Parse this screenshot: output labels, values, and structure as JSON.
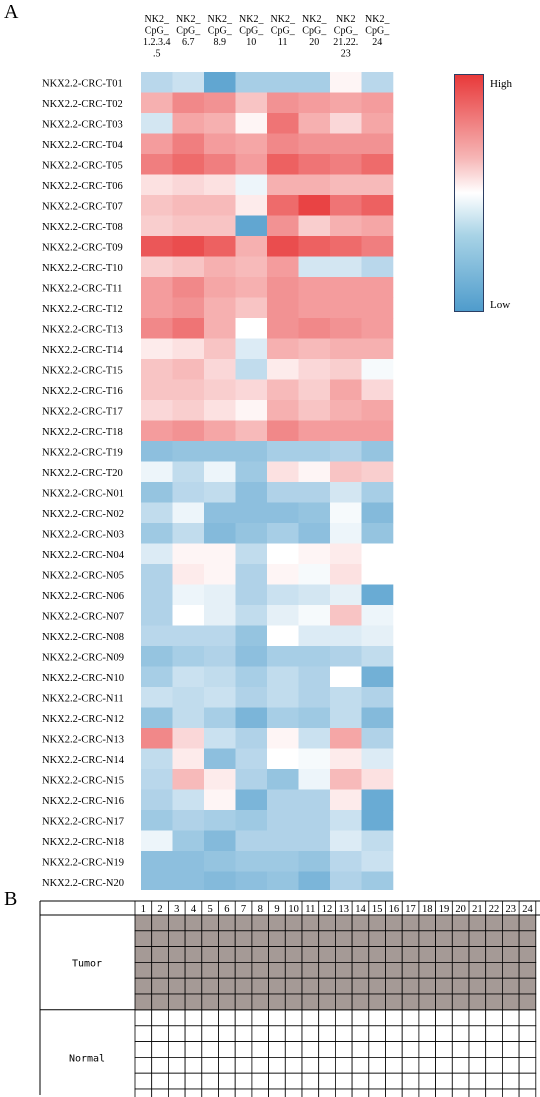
{
  "panels": {
    "a": "A",
    "b": "B"
  },
  "heatmap": {
    "columns": [
      [
        "NK2_",
        "CpG_",
        "1.2.3.4",
        ".5"
      ],
      [
        "NK2_",
        "CpG_",
        "6.7"
      ],
      [
        "NK2_",
        "CpG_",
        "8.9"
      ],
      [
        "NK2_",
        "CpG_",
        "10"
      ],
      [
        "NK2_",
        "CpG_",
        "11"
      ],
      [
        "NK2_",
        "CpG_",
        "20"
      ],
      [
        "NK2",
        "CpG_",
        "21.22.",
        "23"
      ],
      [
        "NK2_",
        "CpG_",
        "24"
      ]
    ],
    "rows": [
      "NKX2.2-CRC-T01",
      "NKX2.2-CRC-T02",
      "NKX2.2-CRC-T03",
      "NKX2.2-CRC-T04",
      "NKX2.2-CRC-T05",
      "NKX2.2-CRC-T06",
      "NKX2.2-CRC-T07",
      "NKX2.2-CRC-T08",
      "NKX2.2-CRC-T09",
      "NKX2.2-CRC-T10",
      "NKX2.2-CRC-T11",
      "NKX2.2-CRC-T12",
      "NKX2.2-CRC-T13",
      "NKX2.2-CRC-T14",
      "NKX2.2-CRC-T15",
      "NKX2.2-CRC-T16",
      "NKX2.2-CRC-T17",
      "NKX2.2-CRC-T18",
      "NKX2.2-CRC-T19",
      "NKX2.2-CRC-T20",
      "NKX2.2-CRC-N01",
      "NKX2.2-CRC-N02",
      "NKX2.2-CRC-N03",
      "NKX2.2-CRC-N04",
      "NKX2.2-CRC-N05",
      "NKX2.2-CRC-N06",
      "NKX2.2-CRC-N07",
      "NKX2.2-CRC-N08",
      "NKX2.2-CRC-N09",
      "NKX2.2-CRC-N10",
      "NKX2.2-CRC-N11",
      "NKX2.2-CRC-N12",
      "NKX2.2-CRC-N13",
      "NKX2.2-CRC-N14",
      "NKX2.2-CRC-N15",
      "NKX2.2-CRC-N16",
      "NKX2.2-CRC-N17",
      "NKX2.2-CRC-N18",
      "NKX2.2-CRC-N19",
      "NKX2.2-CRC-N20"
    ],
    "legend": {
      "high": "High",
      "low": "Low"
    },
    "colors": {
      "high": "#e8393a",
      "mid": "#ffffff",
      "low": "#4f9ccc"
    }
  },
  "chart_data": [
    {
      "type": "heatmap",
      "x": [
        "NK2_CpG_1.2.3.4.5",
        "NK2_CpG_6.7",
        "NK2_CpG_8.9",
        "NK2_CpG_10",
        "NK2_CpG_11",
        "NK2_CpG_20",
        "NK2_CpG_21.22.23",
        "NK2_CpG_24"
      ],
      "y": [
        "NKX2.2-CRC-T01",
        "NKX2.2-CRC-T02",
        "NKX2.2-CRC-T03",
        "NKX2.2-CRC-T04",
        "NKX2.2-CRC-T05",
        "NKX2.2-CRC-T06",
        "NKX2.2-CRC-T07",
        "NKX2.2-CRC-T08",
        "NKX2.2-CRC-T09",
        "NKX2.2-CRC-T10",
        "NKX2.2-CRC-T11",
        "NKX2.2-CRC-T12",
        "NKX2.2-CRC-T13",
        "NKX2.2-CRC-T14",
        "NKX2.2-CRC-T15",
        "NKX2.2-CRC-T16",
        "NKX2.2-CRC-T17",
        "NKX2.2-CRC-T18",
        "NKX2.2-CRC-T19",
        "NKX2.2-CRC-T20",
        "NKX2.2-CRC-N01",
        "NKX2.2-CRC-N02",
        "NKX2.2-CRC-N03",
        "NKX2.2-CRC-N04",
        "NKX2.2-CRC-N05",
        "NKX2.2-CRC-N06",
        "NKX2.2-CRC-N07",
        "NKX2.2-CRC-N08",
        "NKX2.2-CRC-N09",
        "NKX2.2-CRC-N10",
        "NKX2.2-CRC-N11",
        "NKX2.2-CRC-N12",
        "NKX2.2-CRC-N13",
        "NKX2.2-CRC-N14",
        "NKX2.2-CRC-N15",
        "NKX2.2-CRC-N16",
        "NKX2.2-CRC-N17",
        "NKX2.2-CRC-N18",
        "NKX2.2-CRC-N19",
        "NKX2.2-CRC-N20"
      ],
      "values": [
        [
          -0.4,
          -0.3,
          -0.9,
          -0.5,
          -0.5,
          -0.5,
          0.05,
          -0.4
        ],
        [
          0.4,
          0.6,
          0.55,
          0.3,
          0.55,
          0.5,
          0.45,
          0.5
        ],
        [
          -0.25,
          0.45,
          0.4,
          0.05,
          0.7,
          0.4,
          0.2,
          0.45
        ],
        [
          0.5,
          0.65,
          0.5,
          0.45,
          0.6,
          0.55,
          0.55,
          0.55
        ],
        [
          0.65,
          0.75,
          0.65,
          0.5,
          0.8,
          0.7,
          0.65,
          0.75
        ],
        [
          0.15,
          0.2,
          0.15,
          -0.1,
          0.4,
          0.4,
          0.35,
          0.35
        ],
        [
          0.3,
          0.35,
          0.35,
          0.1,
          0.75,
          0.95,
          0.7,
          0.8
        ],
        [
          0.25,
          0.3,
          0.3,
          -0.9,
          0.55,
          0.25,
          0.4,
          0.45
        ],
        [
          0.85,
          0.9,
          0.8,
          0.4,
          0.9,
          0.8,
          0.75,
          0.65
        ],
        [
          0.25,
          0.3,
          0.4,
          0.35,
          0.5,
          -0.25,
          -0.25,
          -0.4
        ],
        [
          0.5,
          0.6,
          0.45,
          0.4,
          0.55,
          0.5,
          0.5,
          0.5
        ],
        [
          0.5,
          0.55,
          0.4,
          0.3,
          0.55,
          0.5,
          0.5,
          0.5
        ],
        [
          0.6,
          0.7,
          0.4,
          0.0,
          0.55,
          0.6,
          0.55,
          0.5
        ],
        [
          0.1,
          0.15,
          0.3,
          -0.2,
          0.4,
          0.35,
          0.4,
          0.4
        ],
        [
          0.3,
          0.35,
          0.2,
          -0.35,
          0.1,
          0.2,
          0.25,
          -0.05
        ],
        [
          0.3,
          0.3,
          0.25,
          0.2,
          0.35,
          0.25,
          0.45,
          0.2
        ],
        [
          0.2,
          0.25,
          0.15,
          0.05,
          0.4,
          0.3,
          0.4,
          0.45
        ],
        [
          0.5,
          0.55,
          0.45,
          0.35,
          0.6,
          0.5,
          0.5,
          0.5
        ],
        [
          -0.65,
          -0.6,
          -0.6,
          -0.6,
          -0.5,
          -0.5,
          -0.45,
          -0.6
        ],
        [
          -0.1,
          -0.35,
          -0.1,
          -0.55,
          0.15,
          0.05,
          0.3,
          0.25
        ],
        [
          -0.6,
          -0.4,
          -0.35,
          -0.65,
          -0.45,
          -0.45,
          -0.25,
          -0.5
        ],
        [
          -0.35,
          -0.1,
          -0.65,
          -0.65,
          -0.65,
          -0.6,
          -0.05,
          -0.7
        ],
        [
          -0.55,
          -0.35,
          -0.7,
          -0.6,
          -0.5,
          -0.65,
          -0.1,
          -0.6
        ],
        [
          -0.2,
          0.05,
          0.05,
          -0.35,
          0.0,
          0.05,
          0.1,
          0.0
        ],
        [
          -0.45,
          0.1,
          0.05,
          -0.45,
          0.05,
          -0.05,
          0.15,
          0.0
        ],
        [
          -0.45,
          -0.1,
          -0.15,
          -0.45,
          -0.3,
          -0.25,
          -0.15,
          -0.85
        ],
        [
          -0.45,
          0.0,
          -0.15,
          -0.35,
          -0.15,
          -0.05,
          0.3,
          -0.1
        ],
        [
          -0.4,
          -0.4,
          -0.4,
          -0.6,
          0.0,
          -0.2,
          -0.2,
          -0.15
        ],
        [
          -0.6,
          -0.5,
          -0.45,
          -0.65,
          -0.5,
          -0.5,
          -0.45,
          -0.35
        ],
        [
          -0.5,
          -0.3,
          -0.35,
          -0.5,
          -0.35,
          -0.45,
          0.0,
          -0.8
        ],
        [
          -0.3,
          -0.35,
          -0.3,
          -0.45,
          -0.35,
          -0.45,
          -0.35,
          -0.45
        ],
        [
          -0.6,
          -0.35,
          -0.5,
          -0.75,
          -0.5,
          -0.55,
          -0.35,
          -0.7
        ],
        [
          0.6,
          0.2,
          -0.3,
          -0.45,
          0.05,
          -0.3,
          0.45,
          -0.45
        ],
        [
          -0.35,
          0.1,
          -0.65,
          -0.4,
          0.0,
          -0.05,
          0.1,
          -0.2
        ],
        [
          -0.4,
          0.35,
          0.1,
          -0.45,
          -0.6,
          -0.1,
          0.35,
          0.15
        ],
        [
          -0.45,
          -0.3,
          0.05,
          -0.75,
          -0.45,
          -0.45,
          0.1,
          -0.85
        ],
        [
          -0.55,
          -0.45,
          -0.5,
          -0.55,
          -0.45,
          -0.45,
          -0.3,
          -0.85
        ],
        [
          -0.1,
          -0.55,
          -0.7,
          -0.45,
          -0.45,
          -0.45,
          -0.2,
          -0.35
        ],
        [
          -0.65,
          -0.65,
          -0.6,
          -0.55,
          -0.55,
          -0.6,
          -0.4,
          -0.3
        ],
        [
          -0.65,
          -0.65,
          -0.7,
          -0.65,
          -0.6,
          -0.75,
          -0.45,
          -0.55
        ]
      ]
    },
    {
      "type": "table",
      "columns": [
        "1",
        "2",
        "3",
        "4",
        "5",
        "6",
        "7",
        "8",
        "9",
        "10",
        "11",
        "12",
        "13",
        "14",
        "15",
        "16",
        "17",
        "18",
        "19",
        "20",
        "21",
        "22",
        "23",
        "24"
      ],
      "groups": [
        {
          "name": "Tumor",
          "rows": 6,
          "filled": true
        },
        {
          "name": "Normal",
          "rows": 6,
          "filled": false
        }
      ]
    }
  ],
  "grid": {
    "tumor_label": "Tumor",
    "normal_label": "Normal",
    "tumor_fill": "#a59a96"
  }
}
